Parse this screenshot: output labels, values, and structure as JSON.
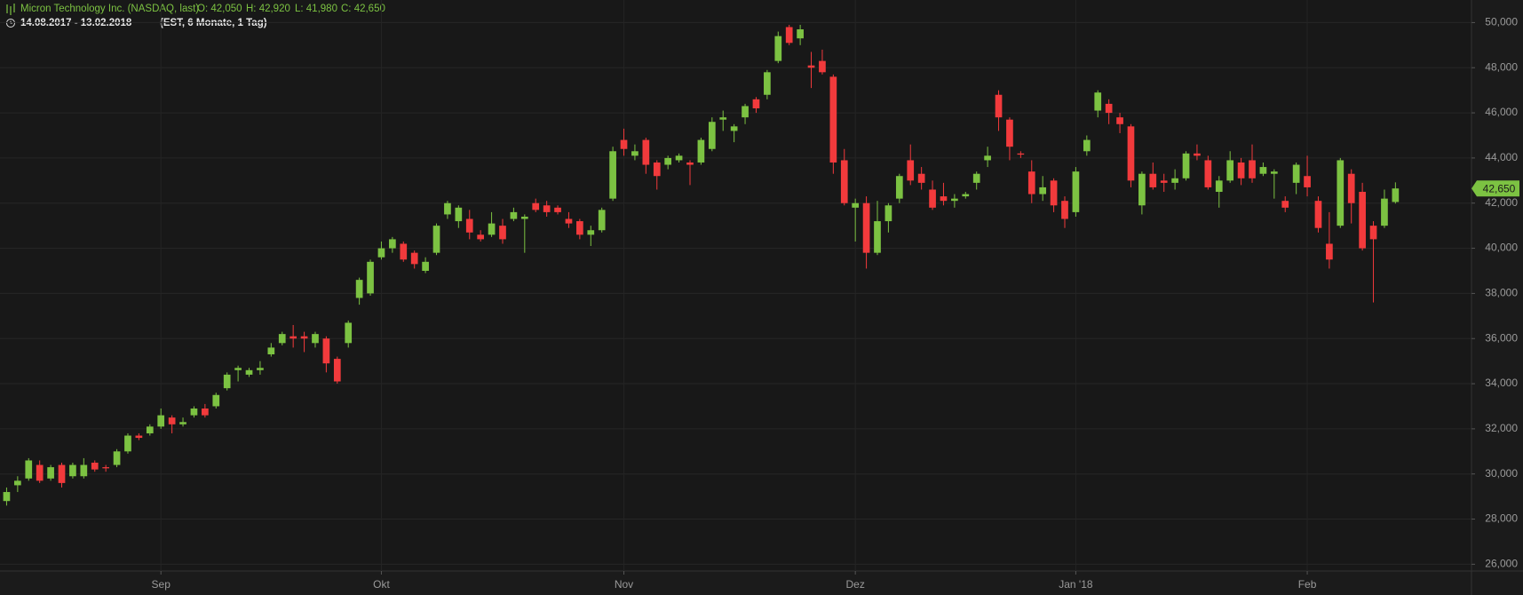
{
  "header": {
    "instrument": "Micron Technology Inc. (NASDAQ, last)",
    "open": "O: 42,050",
    "high": "H: 42,920",
    "low": "L: 41,980",
    "close": "C: 42,650",
    "range": "14.08.2017 - 13.02.2018",
    "settings": "(EST, 6 Monate, 1 Tag)"
  },
  "chart_data": {
    "type": "candlestick",
    "up_color": "#7cc242",
    "down_color": "#f23a3c",
    "xlim": [
      -0.6,
      132.9
    ],
    "xticks": [
      {
        "value": 14,
        "label": "Sep"
      },
      {
        "value": 34,
        "label": "Okt"
      },
      {
        "value": 56,
        "label": "Nov"
      },
      {
        "value": 77,
        "label": "Dez"
      },
      {
        "value": 97,
        "label": "Jan '18"
      },
      {
        "value": 118,
        "label": "Feb"
      }
    ],
    "ylim": [
      25.7,
      51.0
    ],
    "yticks": [
      {
        "value": 26,
        "label": "26,000"
      },
      {
        "value": 28,
        "label": "28,000"
      },
      {
        "value": 30,
        "label": "30,000"
      },
      {
        "value": 32,
        "label": "32,000"
      },
      {
        "value": 34,
        "label": "34,000"
      },
      {
        "value": 36,
        "label": "36,000"
      },
      {
        "value": 38,
        "label": "38,000"
      },
      {
        "value": 40,
        "label": "40,000"
      },
      {
        "value": 42,
        "label": "42,000"
      },
      {
        "value": 44,
        "label": "44,000"
      },
      {
        "value": 46,
        "label": "46,000"
      },
      {
        "value": 48,
        "label": "48,000"
      },
      {
        "value": 50,
        "label": "50,000"
      }
    ],
    "grid": true,
    "last_price": {
      "value": 42.65,
      "label": "42,650"
    },
    "open": [
      28.8,
      29.5,
      29.8,
      30.4,
      29.8,
      30.4,
      29.9,
      29.9,
      30.5,
      30.3,
      30.4,
      31.0,
      31.7,
      31.8,
      32.1,
      32.5,
      32.2,
      32.6,
      32.9,
      33.0,
      33.8,
      34.6,
      34.4,
      34.6,
      35.3,
      35.8,
      36.1,
      36.1,
      35.8,
      36.0,
      35.1,
      35.8,
      37.8,
      38.0,
      39.6,
      40.0,
      40.2,
      39.8,
      39.0,
      39.8,
      41.5,
      41.2,
      41.3,
      40.6,
      40.6,
      41.0,
      41.3,
      41.3,
      42.0,
      41.9,
      41.8,
      41.3,
      41.2,
      40.6,
      40.8,
      42.2,
      44.8,
      44.1,
      44.8,
      43.8,
      43.7,
      43.9,
      43.8,
      43.8,
      44.4,
      45.7,
      45.2,
      45.8,
      46.6,
      46.8,
      48.3,
      49.8,
      49.3,
      48.1,
      48.3,
      47.6,
      43.9,
      41.8,
      42.0,
      39.8,
      41.2,
      42.2,
      43.9,
      43.3,
      42.6,
      42.3,
      42.1,
      42.3,
      42.9,
      43.9,
      46.8,
      45.7,
      44.2,
      43.4,
      42.4,
      43.0,
      42.1,
      41.6,
      44.3,
      46.1,
      46.4,
      45.8,
      45.4,
      41.9,
      43.3,
      43.0,
      42.9,
      43.1,
      44.2,
      43.9,
      42.5,
      43.0,
      43.8,
      43.9,
      43.3,
      43.3,
      42.1,
      42.9,
      43.2,
      42.1,
      40.2,
      41.0,
      43.3,
      42.5,
      41.0,
      41.0,
      42.05
    ],
    "high": [
      29.4,
      29.9,
      30.7,
      30.6,
      30.4,
      30.5,
      30.5,
      30.7,
      30.6,
      30.4,
      31.1,
      31.8,
      31.8,
      32.2,
      32.9,
      32.6,
      32.5,
      33.0,
      33.1,
      33.6,
      34.5,
      34.8,
      34.7,
      35.0,
      35.8,
      36.3,
      36.6,
      36.3,
      36.3,
      36.1,
      35.2,
      36.8,
      38.7,
      39.5,
      40.3,
      40.5,
      40.3,
      39.9,
      39.6,
      41.1,
      42.1,
      41.9,
      41.7,
      40.8,
      41.6,
      41.3,
      41.8,
      41.5,
      42.2,
      42.1,
      41.9,
      41.6,
      41.3,
      41.0,
      41.8,
      44.5,
      45.3,
      44.6,
      44.9,
      43.9,
      44.1,
      44.2,
      43.9,
      44.9,
      45.8,
      46.1,
      45.5,
      46.4,
      46.7,
      47.9,
      49.6,
      49.9,
      49.9,
      48.7,
      48.8,
      47.7,
      44.4,
      42.2,
      42.3,
      42.1,
      42.0,
      43.3,
      44.6,
      43.6,
      43.0,
      42.9,
      42.4,
      42.5,
      43.4,
      44.5,
      47.0,
      45.8,
      44.3,
      43.9,
      43.2,
      43.1,
      42.3,
      43.6,
      45.0,
      47.0,
      46.6,
      46.0,
      45.5,
      43.4,
      43.8,
      43.3,
      43.5,
      44.3,
      44.6,
      44.1,
      43.2,
      44.3,
      44.0,
      44.6,
      43.8,
      43.5,
      42.3,
      43.8,
      44.1,
      42.3,
      41.6,
      44.0,
      43.5,
      42.9,
      41.2,
      42.6,
      42.92
    ],
    "low": [
      28.6,
      29.2,
      29.7,
      29.6,
      29.7,
      29.4,
      29.8,
      29.8,
      30.1,
      30.1,
      30.3,
      30.9,
      31.5,
      31.7,
      32.0,
      31.8,
      32.1,
      32.5,
      32.5,
      32.9,
      33.7,
      34.1,
      34.3,
      34.4,
      35.2,
      35.7,
      35.6,
      35.4,
      35.6,
      34.5,
      34.0,
      35.6,
      37.5,
      37.9,
      39.5,
      39.8,
      39.4,
      39.1,
      38.9,
      39.7,
      41.3,
      40.9,
      40.4,
      40.3,
      40.5,
      40.2,
      41.2,
      39.8,
      41.6,
      41.4,
      41.5,
      40.9,
      40.4,
      40.1,
      40.7,
      42.1,
      44.1,
      43.9,
      43.3,
      42.6,
      43.5,
      43.8,
      42.8,
      43.7,
      44.3,
      45.2,
      44.7,
      45.5,
      46.0,
      46.6,
      48.2,
      49.0,
      49.0,
      47.1,
      47.7,
      43.3,
      41.9,
      40.3,
      39.1,
      39.7,
      40.7,
      42.0,
      42.8,
      42.6,
      41.7,
      41.9,
      41.8,
      42.2,
      42.6,
      43.6,
      45.2,
      43.9,
      44.0,
      42.0,
      42.1,
      41.6,
      40.9,
      41.4,
      44.1,
      45.8,
      45.5,
      45.1,
      42.7,
      41.5,
      42.6,
      42.5,
      42.6,
      43.0,
      43.9,
      42.6,
      41.8,
      42.9,
      42.8,
      42.9,
      43.2,
      42.2,
      41.6,
      42.4,
      42.3,
      40.7,
      39.1,
      40.9,
      41.1,
      39.9,
      37.6,
      40.9,
      41.98
    ],
    "close": [
      29.2,
      29.7,
      30.6,
      29.7,
      30.3,
      29.6,
      30.4,
      30.4,
      30.2,
      30.25,
      31.0,
      31.7,
      31.6,
      32.1,
      32.6,
      32.2,
      32.3,
      32.9,
      32.6,
      33.5,
      34.4,
      34.7,
      34.6,
      34.7,
      35.6,
      36.2,
      36.0,
      36.0,
      36.2,
      34.9,
      34.1,
      36.7,
      38.6,
      39.4,
      40.0,
      40.4,
      39.5,
      39.3,
      39.4,
      41.0,
      42.0,
      41.8,
      40.7,
      40.4,
      41.1,
      40.4,
      41.6,
      41.4,
      41.7,
      41.6,
      41.6,
      41.1,
      40.6,
      40.8,
      41.7,
      44.3,
      44.4,
      44.3,
      43.7,
      43.2,
      44.0,
      44.1,
      43.7,
      44.8,
      45.6,
      45.8,
      45.4,
      46.3,
      46.2,
      47.8,
      49.4,
      49.1,
      49.7,
      48.0,
      47.8,
      43.8,
      42.0,
      42.0,
      39.8,
      41.2,
      41.9,
      43.2,
      43.0,
      42.9,
      41.8,
      42.1,
      42.2,
      42.4,
      43.3,
      44.1,
      45.8,
      44.5,
      44.15,
      42.4,
      42.7,
      41.9,
      41.3,
      43.4,
      44.8,
      46.9,
      46.0,
      45.5,
      43.0,
      43.3,
      42.7,
      42.9,
      43.1,
      44.2,
      44.1,
      42.7,
      43.0,
      43.9,
      43.1,
      43.1,
      43.6,
      43.4,
      41.8,
      43.7,
      42.7,
      40.9,
      39.5,
      43.9,
      42.0,
      40.0,
      40.4,
      42.2,
      42.65
    ]
  }
}
